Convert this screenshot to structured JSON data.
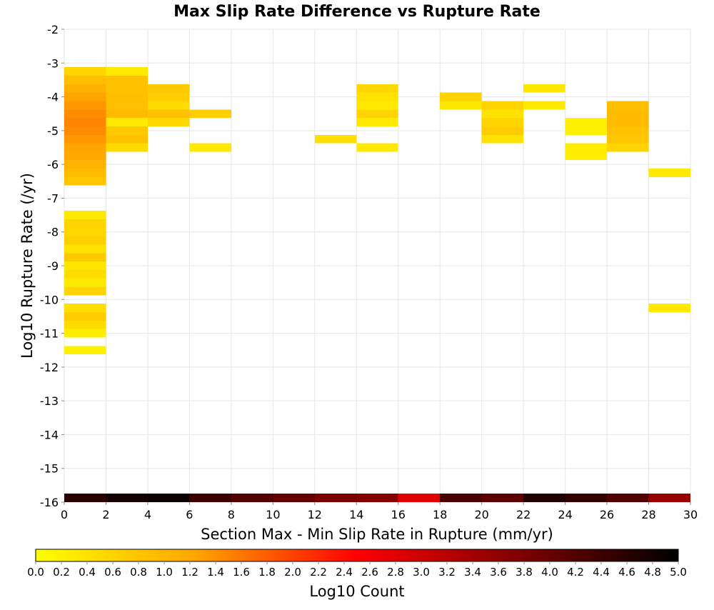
{
  "chart_data": {
    "type": "heatmap",
    "title": "Max Slip Rate Difference vs Rupture Rate",
    "xlabel": "Section Max - Min Slip Rate in Rupture (mm/yr)",
    "ylabel": "Log10 Rupture Rate (/yr)",
    "xlim": [
      0,
      30
    ],
    "ylim": [
      -16,
      -2
    ],
    "xticks": [
      "0",
      "2",
      "4",
      "6",
      "8",
      "10",
      "12",
      "14",
      "16",
      "18",
      "20",
      "22",
      "24",
      "26",
      "28",
      "30"
    ],
    "yticks": [
      "-2",
      "-3",
      "-4",
      "-5",
      "-6",
      "-7",
      "-8",
      "-9",
      "-10",
      "-11",
      "-12",
      "-13",
      "-14",
      "-15",
      "-16"
    ],
    "grid": true,
    "x_bin_width": 2,
    "y_bin_height": 0.25,
    "colorbar": {
      "label": "Log10 Count",
      "min": 0,
      "max": 5,
      "ticks": [
        "0.0",
        "0.2",
        "0.4",
        "0.6",
        "0.8",
        "1.0",
        "1.2",
        "1.4",
        "1.6",
        "1.8",
        "2.0",
        "2.2",
        "2.4",
        "2.6",
        "2.8",
        "3.0",
        "3.2",
        "3.4",
        "3.6",
        "3.8",
        "4.0",
        "4.2",
        "4.4",
        "4.6",
        "4.8",
        "5.0"
      ],
      "colors": [
        "#ffff00",
        "#ffa500",
        "#ff0000",
        "#800000",
        "#000000"
      ]
    },
    "cells": [
      {
        "x": 0,
        "y": -3.25,
        "v": 0.6
      },
      {
        "x": 0,
        "y": -3.5,
        "v": 0.9
      },
      {
        "x": 0,
        "y": -3.75,
        "v": 1.1
      },
      {
        "x": 0,
        "y": -4.0,
        "v": 1.25
      },
      {
        "x": 0,
        "y": -4.25,
        "v": 1.35
      },
      {
        "x": 0,
        "y": -4.5,
        "v": 1.45
      },
      {
        "x": 0,
        "y": -4.75,
        "v": 1.5
      },
      {
        "x": 0,
        "y": -5.0,
        "v": 1.45
      },
      {
        "x": 0,
        "y": -5.25,
        "v": 1.35
      },
      {
        "x": 0,
        "y": -5.5,
        "v": 1.25
      },
      {
        "x": 0,
        "y": -5.75,
        "v": 1.2
      },
      {
        "x": 0,
        "y": -6.0,
        "v": 1.05
      },
      {
        "x": 0,
        "y": -6.25,
        "v": 0.95
      },
      {
        "x": 0,
        "y": -6.5,
        "v": 0.8
      },
      {
        "x": 0,
        "y": -7.5,
        "v": 0.3
      },
      {
        "x": 0,
        "y": -7.75,
        "v": 0.6
      },
      {
        "x": 0,
        "y": -8.0,
        "v": 0.55
      },
      {
        "x": 0,
        "y": -8.25,
        "v": 0.65
      },
      {
        "x": 0,
        "y": -8.5,
        "v": 0.4
      },
      {
        "x": 0,
        "y": -8.75,
        "v": 0.75
      },
      {
        "x": 0,
        "y": -9.0,
        "v": 0.35
      },
      {
        "x": 0,
        "y": -9.25,
        "v": 0.5
      },
      {
        "x": 0,
        "y": -9.5,
        "v": 0.3
      },
      {
        "x": 0,
        "y": -9.75,
        "v": 0.6
      },
      {
        "x": 0,
        "y": -10.25,
        "v": 0.45
      },
      {
        "x": 0,
        "y": -10.5,
        "v": 0.7
      },
      {
        "x": 0,
        "y": -10.75,
        "v": 0.5
      },
      {
        "x": 0,
        "y": -11.0,
        "v": 0.25
      },
      {
        "x": 0,
        "y": -11.5,
        "v": 0.2
      },
      {
        "x": 2,
        "y": -3.25,
        "v": 0.3
      },
      {
        "x": 2,
        "y": -3.5,
        "v": 0.85
      },
      {
        "x": 2,
        "y": -3.75,
        "v": 0.85
      },
      {
        "x": 2,
        "y": -4.0,
        "v": 0.9
      },
      {
        "x": 2,
        "y": -4.25,
        "v": 0.9
      },
      {
        "x": 2,
        "y": -4.5,
        "v": 0.95
      },
      {
        "x": 2,
        "y": -4.75,
        "v": 0.3
      },
      {
        "x": 2,
        "y": -5.0,
        "v": 0.75
      },
      {
        "x": 2,
        "y": -5.25,
        "v": 0.85
      },
      {
        "x": 2,
        "y": -5.5,
        "v": 0.5
      },
      {
        "x": 4,
        "y": -3.75,
        "v": 0.75
      },
      {
        "x": 4,
        "y": -4.0,
        "v": 0.7
      },
      {
        "x": 4,
        "y": -4.25,
        "v": 0.5
      },
      {
        "x": 4,
        "y": -4.5,
        "v": 0.85
      },
      {
        "x": 4,
        "y": -4.75,
        "v": 0.55
      },
      {
        "x": 6,
        "y": -4.5,
        "v": 0.7
      },
      {
        "x": 6,
        "y": -5.5,
        "v": 0.3
      },
      {
        "x": 12,
        "y": -5.25,
        "v": 0.45
      },
      {
        "x": 14,
        "y": -3.75,
        "v": 0.55
      },
      {
        "x": 14,
        "y": -4.0,
        "v": 0.4
      },
      {
        "x": 14,
        "y": -4.25,
        "v": 0.3
      },
      {
        "x": 14,
        "y": -4.5,
        "v": 0.6
      },
      {
        "x": 14,
        "y": -4.75,
        "v": 0.3
      },
      {
        "x": 14,
        "y": -5.5,
        "v": 0.3
      },
      {
        "x": 18,
        "y": -4.0,
        "v": 0.6
      },
      {
        "x": 18,
        "y": -4.25,
        "v": 0.35
      },
      {
        "x": 20,
        "y": -4.25,
        "v": 0.6
      },
      {
        "x": 20,
        "y": -4.5,
        "v": 0.4
      },
      {
        "x": 20,
        "y": -4.75,
        "v": 0.6
      },
      {
        "x": 20,
        "y": -5.0,
        "v": 0.7
      },
      {
        "x": 20,
        "y": -5.25,
        "v": 0.4
      },
      {
        "x": 22,
        "y": -3.75,
        "v": 0.35
      },
      {
        "x": 22,
        "y": -4.25,
        "v": 0.3
      },
      {
        "x": 24,
        "y": -4.75,
        "v": 0.2
      },
      {
        "x": 24,
        "y": -5.0,
        "v": 0.2
      },
      {
        "x": 24,
        "y": -5.5,
        "v": 0.25
      },
      {
        "x": 24,
        "y": -5.75,
        "v": 0.25
      },
      {
        "x": 26,
        "y": -4.25,
        "v": 0.9
      },
      {
        "x": 26,
        "y": -4.5,
        "v": 0.95
      },
      {
        "x": 26,
        "y": -4.75,
        "v": 0.95
      },
      {
        "x": 26,
        "y": -5.0,
        "v": 0.85
      },
      {
        "x": 26,
        "y": -5.25,
        "v": 0.8
      },
      {
        "x": 26,
        "y": -5.5,
        "v": 0.6
      },
      {
        "x": 28,
        "y": -6.25,
        "v": 0.3
      },
      {
        "x": 28,
        "y": -10.25,
        "v": 0.3
      },
      {
        "x": 0,
        "y": -15.875,
        "v": 4.6
      },
      {
        "x": 2,
        "y": -15.875,
        "v": 4.8
      },
      {
        "x": 4,
        "y": -15.875,
        "v": 4.9
      },
      {
        "x": 6,
        "y": -15.875,
        "v": 4.4
      },
      {
        "x": 8,
        "y": -15.875,
        "v": 4.2
      },
      {
        "x": 10,
        "y": -15.875,
        "v": 4.0
      },
      {
        "x": 12,
        "y": -15.875,
        "v": 3.8
      },
      {
        "x": 14,
        "y": -15.875,
        "v": 3.7
      },
      {
        "x": 16,
        "y": -15.875,
        "v": 2.8
      },
      {
        "x": 18,
        "y": -15.875,
        "v": 4.3
      },
      {
        "x": 20,
        "y": -15.875,
        "v": 4.1
      },
      {
        "x": 22,
        "y": -15.875,
        "v": 4.7
      },
      {
        "x": 24,
        "y": -15.875,
        "v": 4.5
      },
      {
        "x": 26,
        "y": -15.875,
        "v": 4.2
      },
      {
        "x": 28,
        "y": -15.875,
        "v": 3.5
      }
    ],
    "cell_heights": {
      "-15.875": 0.25
    }
  }
}
